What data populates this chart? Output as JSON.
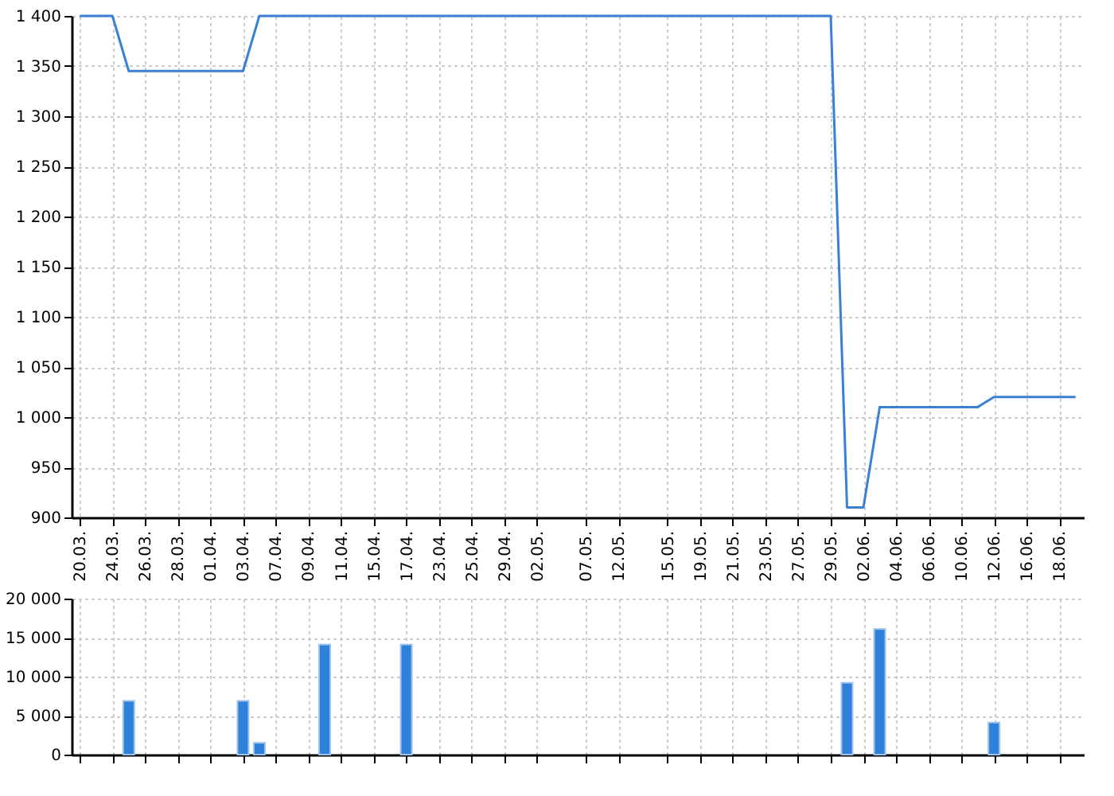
{
  "chart_data": [
    {
      "type": "line",
      "categories": [
        "20.03.",
        null,
        "24.03.",
        null,
        "26.03.",
        null,
        "28.03.",
        null,
        "01.04.",
        null,
        "03.04.",
        null,
        "07.04.",
        null,
        "09.04.",
        null,
        "11.04.",
        null,
        "15.04.",
        null,
        "17.04.",
        null,
        "23.04.",
        null,
        "25.04.",
        null,
        "29.04.",
        null,
        "02.05.",
        null,
        null,
        "07.05.",
        null,
        "12.05.",
        null,
        null,
        "15.05.",
        null,
        "19.05.",
        null,
        "21.05.",
        null,
        "23.05.",
        null,
        "27.05.",
        null,
        "29.05.",
        null,
        "02.06.",
        null,
        "04.06.",
        null,
        "06.06.",
        null,
        "10.06.",
        null,
        "12.06.",
        null,
        "16.06.",
        null,
        "18.06.",
        null
      ],
      "series": [
        {
          "color": "#3a80d6",
          "values": [
            1400,
            1400,
            1400,
            1345,
            1345,
            1345,
            1345,
            1345,
            1345,
            1345,
            1345,
            1400,
            1400,
            1400,
            1400,
            1400,
            1400,
            1400,
            1400,
            1400,
            1400,
            1400,
            1400,
            1400,
            1400,
            1400,
            1400,
            1400,
            1400,
            1400,
            1400,
            1400,
            1400,
            1400,
            1400,
            1400,
            1400,
            1400,
            1400,
            1400,
            1400,
            1400,
            1400,
            1400,
            1400,
            1400,
            1400,
            910,
            910,
            1010,
            1010,
            1010,
            1010,
            1010,
            1010,
            1010,
            1020,
            1020,
            1020,
            1020,
            1020,
            1020
          ]
        }
      ],
      "ylim": [
        900,
        1400
      ],
      "yticks": [
        {
          "value": 900,
          "label": "900"
        },
        {
          "value": 950,
          "label": "950"
        },
        {
          "value": 1000,
          "label": "1 000"
        },
        {
          "value": 1050,
          "label": "1 050"
        },
        {
          "value": 1100,
          "label": "1 100"
        },
        {
          "value": 1150,
          "label": "1 150"
        },
        {
          "value": 1200,
          "label": "1 200"
        },
        {
          "value": 1250,
          "label": "1 250"
        },
        {
          "value": 1300,
          "label": "1 300"
        },
        {
          "value": 1350,
          "label": "1 350"
        },
        {
          "value": 1400,
          "label": "1 400"
        }
      ],
      "grid": true,
      "marker": "none",
      "line_style": "solid"
    },
    {
      "type": "bar",
      "categories": [
        "20.03.",
        null,
        "24.03.",
        null,
        "26.03.",
        null,
        "28.03.",
        null,
        "01.04.",
        null,
        "03.04.",
        null,
        "07.04.",
        null,
        "09.04.",
        null,
        "11.04.",
        null,
        "15.04.",
        null,
        "17.04.",
        null,
        "23.04.",
        null,
        "25.04.",
        null,
        "29.04.",
        null,
        "02.05.",
        null,
        null,
        "07.05.",
        null,
        "12.05.",
        null,
        null,
        "15.05.",
        null,
        "19.05.",
        null,
        "21.05.",
        null,
        "23.05.",
        null,
        "27.05.",
        null,
        "29.05.",
        null,
        "02.06.",
        null,
        "04.06.",
        null,
        "06.06.",
        null,
        "10.06.",
        null,
        "12.06.",
        null,
        "16.06.",
        null,
        "18.06.",
        null
      ],
      "series": [
        {
          "color": "#2f80d8",
          "values": [
            null,
            null,
            null,
            6900,
            null,
            null,
            null,
            null,
            null,
            null,
            6900,
            1500,
            null,
            null,
            null,
            14100,
            null,
            null,
            null,
            null,
            14100,
            null,
            null,
            null,
            null,
            null,
            null,
            null,
            null,
            null,
            null,
            null,
            null,
            null,
            null,
            null,
            null,
            null,
            null,
            null,
            null,
            null,
            null,
            null,
            null,
            null,
            null,
            9200,
            null,
            16100,
            null,
            null,
            null,
            null,
            null,
            null,
            4100,
            null,
            null,
            null,
            null,
            null
          ]
        }
      ],
      "ylim": [
        0,
        20000
      ],
      "yticks": [
        {
          "value": 0,
          "label": "0"
        },
        {
          "value": 5000,
          "label": "5 000"
        },
        {
          "value": 10000,
          "label": "10 000"
        },
        {
          "value": 15000,
          "label": "15 000"
        },
        {
          "value": 20000,
          "label": "20 000"
        }
      ],
      "grid": true,
      "tick_labels": "y"
    }
  ]
}
